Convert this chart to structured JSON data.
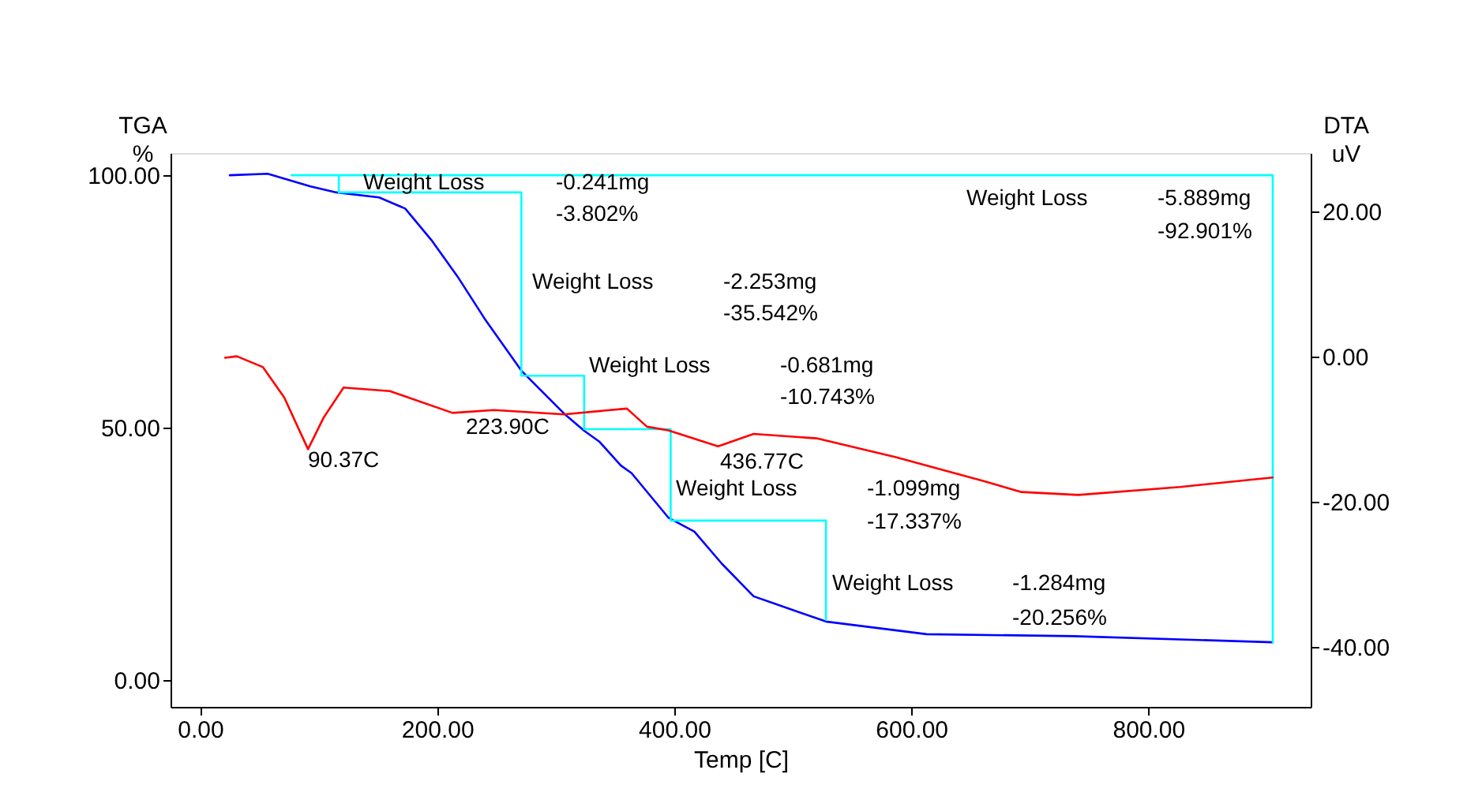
{
  "chart_data": {
    "type": "line",
    "xlabel": "Temp  [C]",
    "ylabel": "TGA\n%",
    "y2label": "DTA\nuV",
    "xlim": [
      -25,
      937
    ],
    "ylim": [
      -5.3,
      104.4
    ],
    "y2lim": [
      -48.3,
      28
    ],
    "xticks": [
      {
        "value": 0,
        "label": "0.00"
      },
      {
        "value": 200,
        "label": "200.00"
      },
      {
        "value": 400,
        "label": "400.00"
      },
      {
        "value": 600,
        "label": "600.00"
      },
      {
        "value": 800,
        "label": "800.00"
      }
    ],
    "yticks": [
      {
        "value": 0,
        "label": "0.00"
      },
      {
        "value": 50,
        "label": "50.00"
      },
      {
        "value": 100,
        "label": "100.00"
      }
    ],
    "y2ticks": [
      {
        "value": 20,
        "label": "20.00"
      },
      {
        "value": 0,
        "label": "0.00"
      },
      {
        "value": -20,
        "label": "-20.00"
      },
      {
        "value": -40,
        "label": "-40.00"
      }
    ],
    "grid": false,
    "legend": false,
    "series": [
      {
        "color": "#0000ff",
        "x": [
          25,
          57,
          93,
          115,
          151,
          173,
          195,
          217,
          240,
          271,
          307,
          324,
          337,
          355,
          364,
          395,
          417,
          440,
          467,
          528,
          613,
          737,
          905
        ],
        "values": [
          100,
          100.3,
          97.8,
          96.6,
          95.6,
          93.4,
          87.2,
          80,
          71.6,
          61.3,
          52.8,
          49.4,
          47.2,
          42.5,
          41,
          32.2,
          29.4,
          23.1,
          16.6,
          11.6,
          9.1,
          8.7,
          7.5
        ]
      },
      {
        "color": "#ff0000",
        "axis": "y2",
        "x": [
          21,
          31,
          53,
          71,
          91,
          104,
          121,
          160,
          213,
          248,
          307,
          360,
          377,
          395,
          437,
          467,
          520,
          587,
          661,
          693,
          741,
          827,
          905
        ],
        "values": [
          -0.2,
          0,
          -1.5,
          -5.7,
          -12.8,
          -8.5,
          -4.3,
          -4.8,
          -7.8,
          -7.4,
          -8,
          -7.2,
          -9.7,
          -10.2,
          -12.4,
          -10.7,
          -11.3,
          -13.9,
          -17.2,
          -18.7,
          -19.1,
          -18,
          -16.7
        ]
      },
      {
        "color": "#00ffff",
        "x": [
          77,
          117,
          117,
          271,
          271,
          324,
          324,
          397,
          397,
          528,
          528
        ],
        "values": [
          100,
          100,
          96.6,
          96.6,
          60.3,
          60.3,
          49.7,
          49.7,
          31.6,
          31.6,
          11.9
        ]
      },
      {
        "color": "#00ffff",
        "x": [
          117,
          905,
          905
        ],
        "values": [
          100,
          100,
          7.5
        ]
      }
    ],
    "annotations": [
      "Weight Loss",
      "-0.241mg",
      "-3.802%",
      "Weight Loss",
      "-2.253mg",
      "-35.542%",
      "Weight Loss",
      "-0.681mg",
      "-10.743%",
      "Weight Loss",
      "-1.099mg",
      "-17.337%",
      "Weight Loss",
      "-1.284mg",
      "-20.256%",
      "Weight Loss",
      "-5.889mg",
      "-92.901%",
      "90.37C",
      "223.90C",
      "436.77C"
    ]
  }
}
